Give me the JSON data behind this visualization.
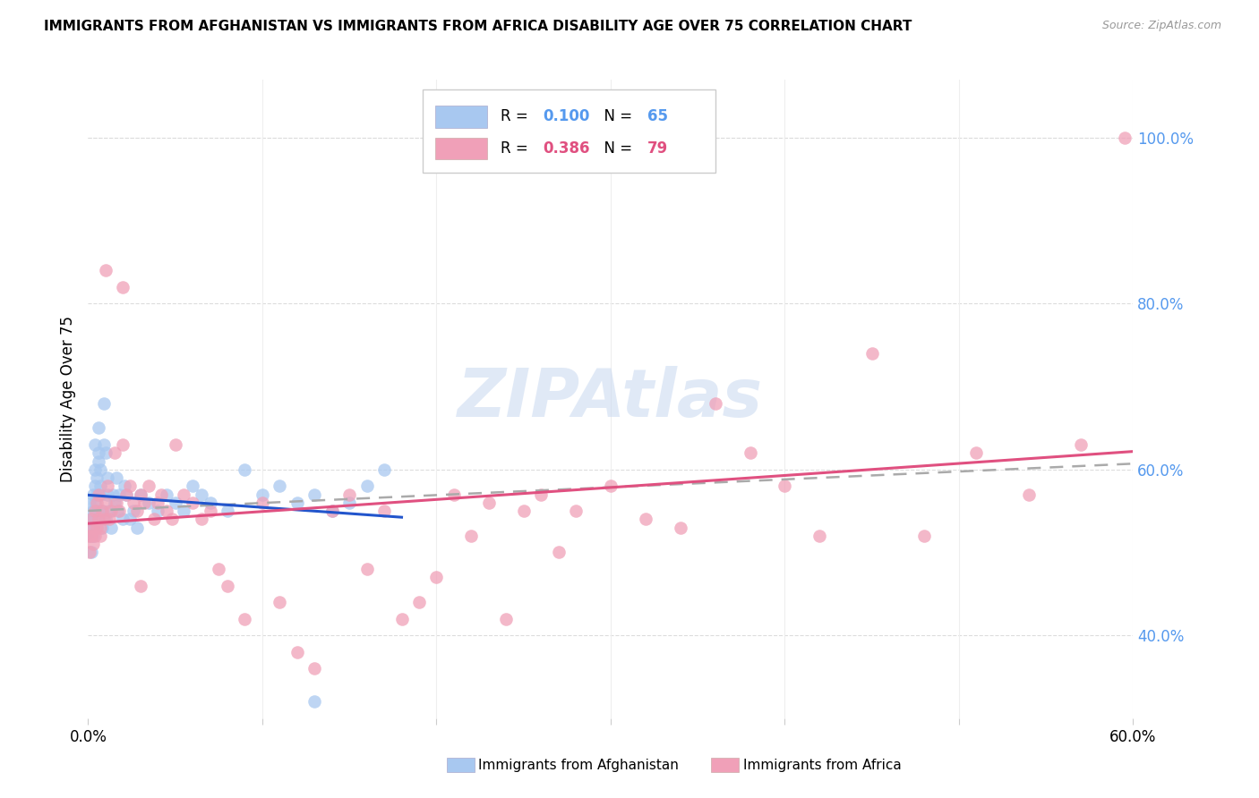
{
  "title": "IMMIGRANTS FROM AFGHANISTAN VS IMMIGRANTS FROM AFRICA DISABILITY AGE OVER 75 CORRELATION CHART",
  "source": "Source: ZipAtlas.com",
  "ylabel": "Disability Age Over 75",
  "legend_label1": "Immigrants from Afghanistan",
  "legend_label2": "Immigrants from Africa",
  "r1": 0.1,
  "n1": 65,
  "r2": 0.386,
  "n2": 79,
  "color1": "#a8c8f0",
  "color2": "#f0a0b8",
  "line_color1": "#2255cc",
  "line_color2": "#e05080",
  "dashed_line_color": "#aaaaaa",
  "right_axis_color": "#5599ee",
  "xlim": [
    0.0,
    0.6
  ],
  "ylim": [
    0.3,
    1.07
  ],
  "xticks": [
    0.0,
    0.1,
    0.2,
    0.3,
    0.4,
    0.5,
    0.6
  ],
  "xtick_labels": [
    "0.0%",
    "",
    "",
    "",
    "",
    "",
    "60.0%"
  ],
  "yticks_right": [
    0.4,
    0.6,
    0.8,
    1.0
  ],
  "background_color": "#ffffff",
  "watermark": "ZIPAtlas",
  "watermark_color": "#c8d8f0",
  "afghanistan_x": [
    0.001,
    0.001,
    0.001,
    0.002,
    0.002,
    0.002,
    0.003,
    0.003,
    0.003,
    0.003,
    0.004,
    0.004,
    0.004,
    0.004,
    0.005,
    0.005,
    0.005,
    0.006,
    0.006,
    0.006,
    0.006,
    0.007,
    0.007,
    0.007,
    0.008,
    0.008,
    0.009,
    0.009,
    0.01,
    0.01,
    0.011,
    0.011,
    0.012,
    0.013,
    0.014,
    0.015,
    0.016,
    0.017,
    0.018,
    0.02,
    0.021,
    0.022,
    0.024,
    0.026,
    0.028,
    0.03,
    0.035,
    0.04,
    0.045,
    0.05,
    0.055,
    0.06,
    0.065,
    0.07,
    0.08,
    0.09,
    0.1,
    0.11,
    0.12,
    0.13,
    0.14,
    0.15,
    0.16,
    0.17,
    0.13
  ],
  "afghanistan_y": [
    0.52,
    0.54,
    0.56,
    0.5,
    0.53,
    0.54,
    0.55,
    0.53,
    0.57,
    0.52,
    0.56,
    0.58,
    0.6,
    0.63,
    0.59,
    0.55,
    0.57,
    0.54,
    0.61,
    0.62,
    0.65,
    0.58,
    0.6,
    0.57,
    0.53,
    0.55,
    0.63,
    0.68,
    0.62,
    0.54,
    0.57,
    0.59,
    0.55,
    0.53,
    0.57,
    0.56,
    0.59,
    0.55,
    0.57,
    0.54,
    0.58,
    0.57,
    0.54,
    0.55,
    0.53,
    0.57,
    0.56,
    0.55,
    0.57,
    0.56,
    0.55,
    0.58,
    0.57,
    0.56,
    0.55,
    0.6,
    0.57,
    0.58,
    0.56,
    0.57,
    0.55,
    0.56,
    0.58,
    0.6,
    0.32
  ],
  "africa_x": [
    0.001,
    0.001,
    0.002,
    0.002,
    0.003,
    0.003,
    0.004,
    0.004,
    0.005,
    0.005,
    0.006,
    0.006,
    0.007,
    0.007,
    0.008,
    0.009,
    0.01,
    0.011,
    0.012,
    0.013,
    0.015,
    0.016,
    0.018,
    0.02,
    0.022,
    0.024,
    0.026,
    0.028,
    0.03,
    0.032,
    0.035,
    0.038,
    0.04,
    0.042,
    0.045,
    0.048,
    0.05,
    0.055,
    0.06,
    0.065,
    0.07,
    0.075,
    0.08,
    0.09,
    0.1,
    0.11,
    0.12,
    0.13,
    0.14,
    0.15,
    0.16,
    0.17,
    0.18,
    0.19,
    0.2,
    0.21,
    0.22,
    0.23,
    0.24,
    0.25,
    0.26,
    0.27,
    0.28,
    0.3,
    0.32,
    0.34,
    0.36,
    0.38,
    0.4,
    0.42,
    0.45,
    0.48,
    0.51,
    0.54,
    0.57,
    0.595,
    0.01,
    0.02,
    0.03
  ],
  "africa_y": [
    0.52,
    0.5,
    0.54,
    0.52,
    0.53,
    0.51,
    0.55,
    0.52,
    0.56,
    0.53,
    0.54,
    0.57,
    0.52,
    0.53,
    0.55,
    0.54,
    0.56,
    0.58,
    0.54,
    0.55,
    0.62,
    0.56,
    0.55,
    0.63,
    0.57,
    0.58,
    0.56,
    0.55,
    0.57,
    0.56,
    0.58,
    0.54,
    0.56,
    0.57,
    0.55,
    0.54,
    0.63,
    0.57,
    0.56,
    0.54,
    0.55,
    0.48,
    0.46,
    0.42,
    0.56,
    0.44,
    0.38,
    0.36,
    0.55,
    0.57,
    0.48,
    0.55,
    0.42,
    0.44,
    0.47,
    0.57,
    0.52,
    0.56,
    0.42,
    0.55,
    0.57,
    0.5,
    0.55,
    0.58,
    0.54,
    0.53,
    0.68,
    0.62,
    0.58,
    0.52,
    0.74,
    0.52,
    0.62,
    0.57,
    0.63,
    1.0,
    0.84,
    0.82,
    0.46
  ]
}
